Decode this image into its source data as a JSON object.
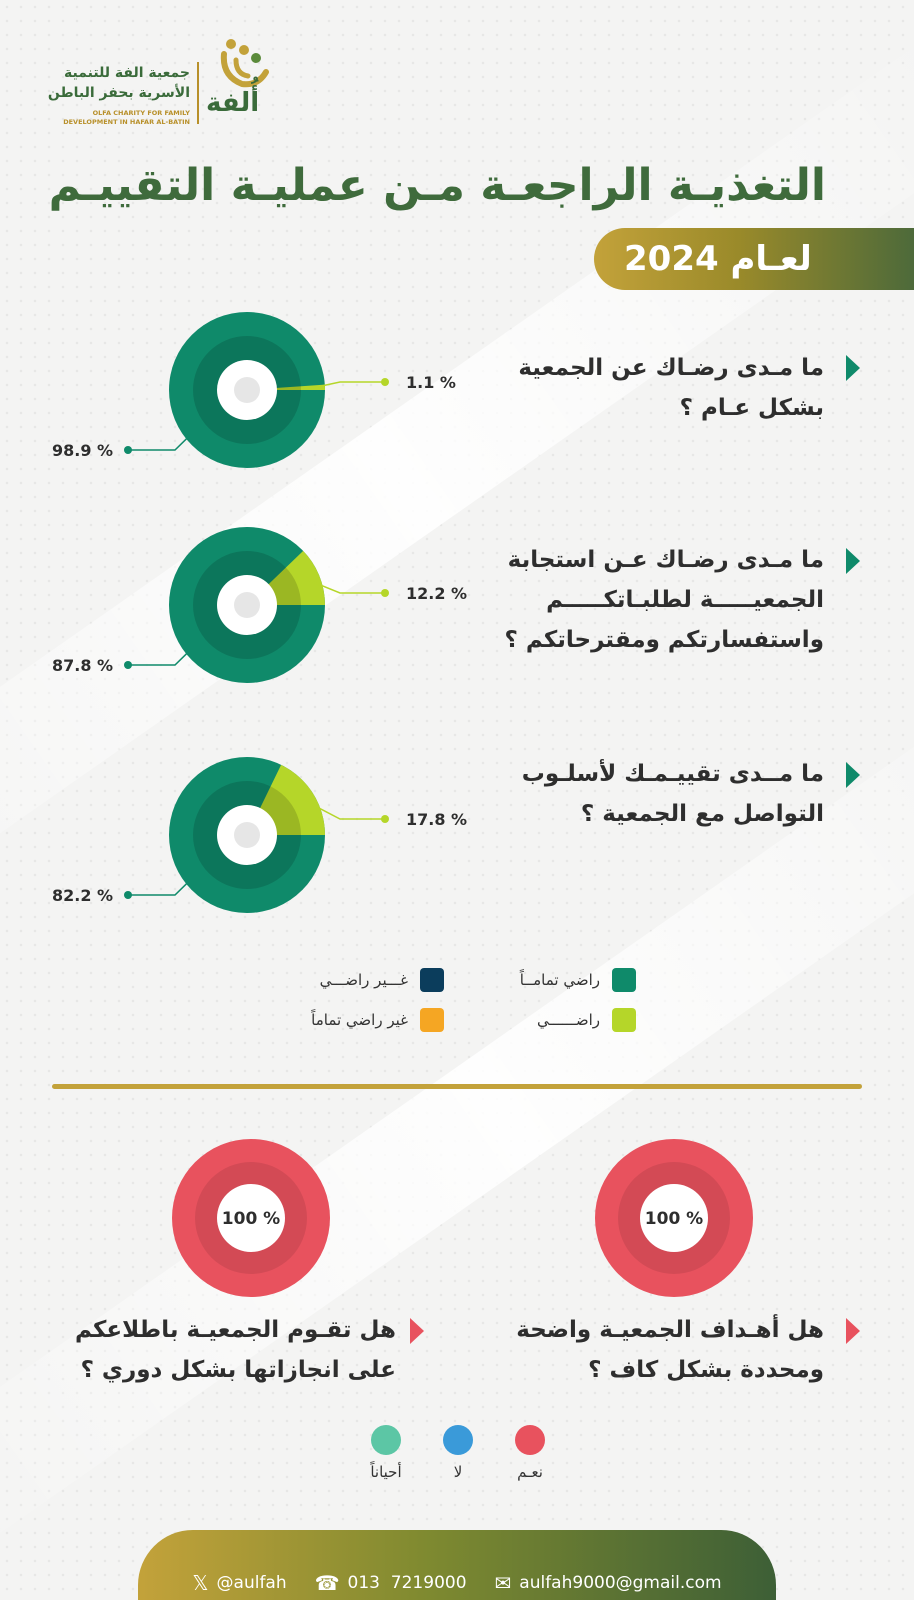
{
  "header": {
    "org_name_ar_line1": "جمعية الفة للتنمية",
    "org_name_ar_line2": "الأسرية بحفر الباطن",
    "org_name_en_line1": "OLFA CHARITY FOR FAMILY",
    "org_name_en_line2": "DEVELOPMENT IN HAFAR AL-BATIN",
    "logo_name": "أُلفة",
    "title": "التغذيـة الراجعـة مـن عمليـة التقييـم",
    "year_label": "لعـام 2024"
  },
  "colors": {
    "very_satisfied": "#0f8a6a",
    "satisfied": "#b5d629",
    "not_satisfied": "#0b3d5c",
    "not_satisfied_at_all": "#f5a623",
    "yes": "#e8525e",
    "no": "#3a9ad9",
    "sometimes": "#5cc6a5",
    "gold": "#c3a23a"
  },
  "questions": [
    {
      "text_line1": "ما مـدى رضـاك عن الجمعية",
      "text_line2": "بشكل عـام ؟",
      "text_line3": ""
    },
    {
      "text_line1": "ما مـدى رضـاك عـن استجابة",
      "text_line2": "الجمعيـــــة لطلبـاتكـــــم",
      "text_line3": "واستفسارتكم ومقترحاتكم ؟"
    },
    {
      "text_line1": "ما مــدى تقييـمـك لأسلـوب",
      "text_line2": "التواصل مع الجمعية ؟",
      "text_line3": ""
    }
  ],
  "chart_data": [
    {
      "type": "pie",
      "categories": [
        "راضي تمامــاً",
        "راضــــــي"
      ],
      "values": [
        98.9,
        1.1
      ],
      "labels": [
        "98.9 %",
        "1.1 %"
      ]
    },
    {
      "type": "pie",
      "categories": [
        "راضي تمامــاً",
        "راضــــــي"
      ],
      "values": [
        87.8,
        12.2
      ],
      "labels": [
        "87.8 %",
        "12.2 %"
      ]
    },
    {
      "type": "pie",
      "categories": [
        "راضي تمامــاً",
        "راضــــــي"
      ],
      "values": [
        82.2,
        17.8
      ],
      "labels": [
        "82.2 %",
        "17.8 %"
      ]
    },
    {
      "type": "pie",
      "categories": [
        "نعـم"
      ],
      "values": [
        100
      ],
      "labels": [
        "100 %"
      ]
    },
    {
      "type": "pie",
      "categories": [
        "نعـم"
      ],
      "values": [
        100
      ],
      "labels": [
        "100 %"
      ]
    }
  ],
  "legend1": {
    "very_satisfied": "راضي تمامــاً",
    "not_satisfied": "غـــير راضـــي",
    "satisfied": "راضــــــي",
    "not_satisfied_at_all": "غير راضي تماماً"
  },
  "bottom_questions": [
    {
      "text_line1": "هل أهـداف الجمعيـة واضحة",
      "text_line2": "ومحددة بشكل كاف ؟"
    },
    {
      "text_line1": "هل تقـوم الجمعيـة باطلاعكم",
      "text_line2": "على انجازاتها بشكل دوري ؟"
    }
  ],
  "legend2": {
    "yes": "نعـم",
    "no": "لا",
    "sometimes": "أحياناً"
  },
  "footer": {
    "twitter": "@aulfah",
    "phone": "013  7219000",
    "email": "aulfah9000@gmail.com"
  }
}
